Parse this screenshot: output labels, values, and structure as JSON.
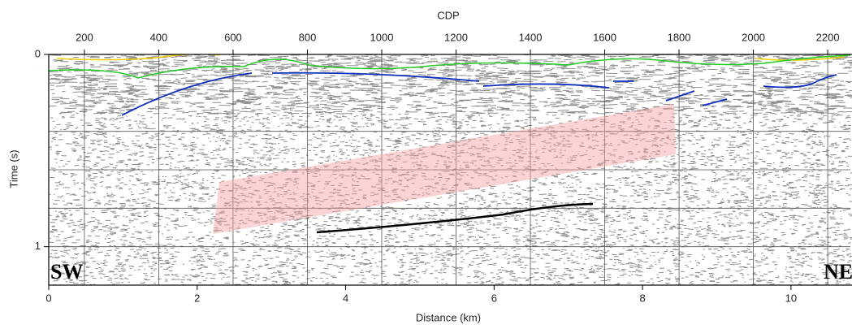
{
  "chart_data": {
    "type": "seismic-section",
    "title": "CDP",
    "xlabel": "Distance (km)",
    "ylabel": "Time (s)",
    "xlim": [
      0,
      10.8
    ],
    "xticks": [
      0,
      2,
      4,
      6,
      8,
      10
    ],
    "x2lim": [
      104,
      2261
    ],
    "x2ticks": [
      200,
      400,
      600,
      800,
      1000,
      1200,
      1400,
      1600,
      1800,
      2000,
      2200
    ],
    "ylim": [
      0,
      1.2
    ],
    "yticks": [
      0,
      1
    ],
    "ygrid": [
      0.4,
      0.6,
      0.8,
      1
    ],
    "grid": true,
    "annotations": [
      "SW",
      "NE"
    ]
  }
}
